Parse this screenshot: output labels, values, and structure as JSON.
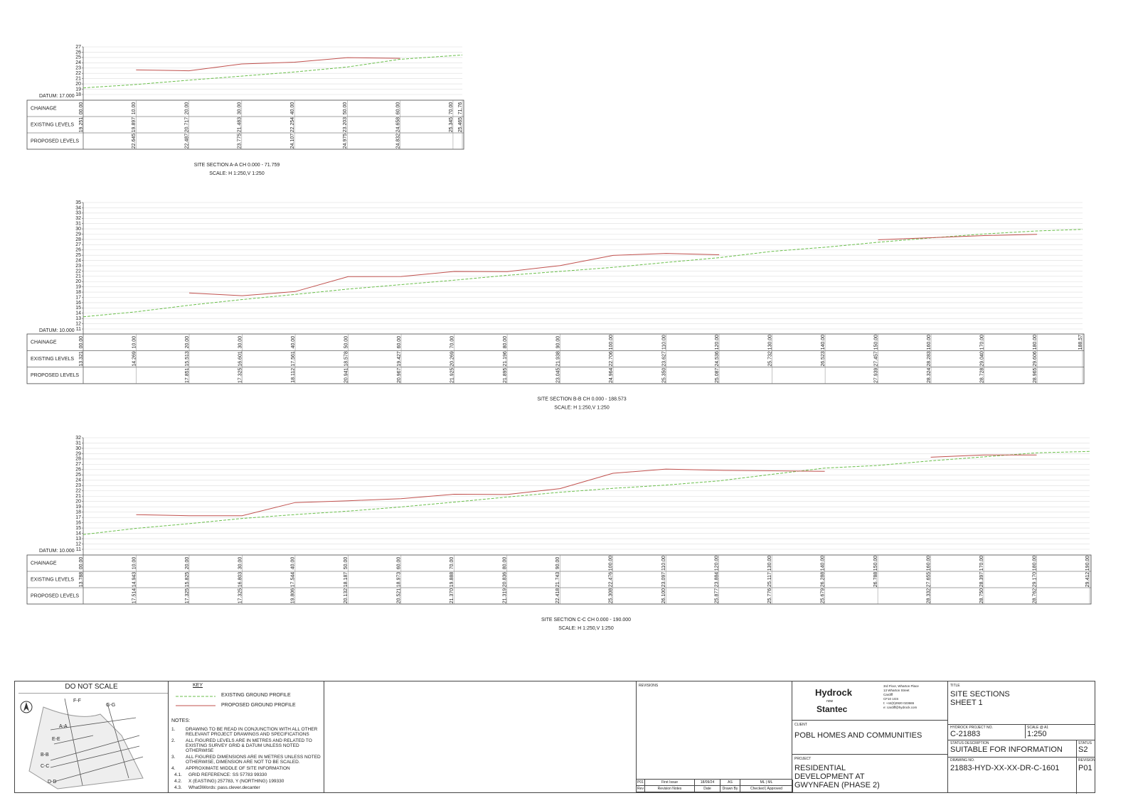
{
  "chart_data": [
    {
      "type": "line",
      "title": "SITE SECTION A-A CH 0.000 - 71.759",
      "subtitle": "SCALE: H 1:250,V 1:250",
      "datum": "DATUM: 17.000",
      "x_label": "CHAINAGE",
      "grid": true,
      "x": [
        0,
        10,
        20,
        30,
        40,
        50,
        60,
        70,
        71.759
      ],
      "xlim": [
        0,
        71.759
      ],
      "xticks": [
        {
          "value": 0,
          "label": "00.00"
        },
        {
          "value": 10,
          "label": "10.00"
        },
        {
          "value": 20,
          "label": "20.00"
        },
        {
          "value": 30,
          "label": "30.00"
        },
        {
          "value": 40,
          "label": "40.00"
        },
        {
          "value": 50,
          "label": "50.00"
        },
        {
          "value": 60,
          "label": "60.00"
        },
        {
          "value": 70,
          "label": "70.00"
        },
        {
          "value": 71.759,
          "label": "71.76"
        }
      ],
      "ylim": [
        18,
        27
      ],
      "yticks": [
        18,
        19,
        20,
        21,
        22,
        23,
        24,
        25,
        26,
        27
      ],
      "series": [
        {
          "name": "EXISTING LEVELS",
          "color": "#6abf4b",
          "values": [
            19.251,
            19.897,
            20.717,
            21.483,
            22.254,
            23.203,
            24.658,
            25.345,
            25.465
          ],
          "value_labels": [
            "19.251",
            "19.897",
            "20.717",
            "21.483",
            "22.254",
            "23.203",
            "24.658",
            "25.345",
            "25.465"
          ]
        },
        {
          "name": "PROPOSED LEVELS",
          "color": "#c0504d",
          "values": [
            null,
            22.645,
            22.487,
            23.775,
            24.107,
            24.975,
            24.832,
            null,
            null
          ],
          "value_labels": [
            null,
            "22.645",
            "22.487",
            "23.775",
            "24.107",
            "24.975",
            "24.832",
            null,
            null
          ]
        }
      ]
    },
    {
      "type": "line",
      "title": "SITE SECTION B-B CH 0.000 - 188.573",
      "subtitle": "SCALE: H 1:250,V 1:250",
      "datum": "DATUM: 10.000",
      "x_label": "CHAINAGE",
      "grid": true,
      "x": [
        0,
        10,
        20,
        30,
        40,
        50,
        60,
        70,
        80,
        90,
        100,
        110,
        120,
        130,
        140,
        150,
        160,
        170,
        180,
        188.573
      ],
      "xlim": [
        0,
        188.573
      ],
      "xticks": [
        {
          "value": 0,
          "label": "00.00"
        },
        {
          "value": 10,
          "label": "10.00"
        },
        {
          "value": 20,
          "label": "20.00"
        },
        {
          "value": 30,
          "label": "30.00"
        },
        {
          "value": 40,
          "label": "40.00"
        },
        {
          "value": 50,
          "label": "50.00"
        },
        {
          "value": 60,
          "label": "60.00"
        },
        {
          "value": 70,
          "label": "70.00"
        },
        {
          "value": 80,
          "label": "80.00"
        },
        {
          "value": 90,
          "label": "90.00"
        },
        {
          "value": 100,
          "label": "100.00"
        },
        {
          "value": 110,
          "label": "110.00"
        },
        {
          "value": 120,
          "label": "120.00"
        },
        {
          "value": 130,
          "label": "130.00"
        },
        {
          "value": 140,
          "label": "140.00"
        },
        {
          "value": 150,
          "label": "150.00"
        },
        {
          "value": 160,
          "label": "160.00"
        },
        {
          "value": 170,
          "label": "170.00"
        },
        {
          "value": 180,
          "label": "180.00"
        },
        {
          "value": 188.573,
          "label": "188.57"
        }
      ],
      "ylim": [
        11,
        35
      ],
      "yticks": [
        11,
        12,
        13,
        14,
        15,
        16,
        17,
        18,
        19,
        20,
        21,
        22,
        23,
        24,
        25,
        26,
        27,
        28,
        29,
        30,
        31,
        32,
        33,
        34,
        35
      ],
      "series": [
        {
          "name": "EXISTING LEVELS",
          "color": "#6abf4b",
          "values": [
            13.321,
            14.269,
            15.513,
            16.601,
            17.561,
            18.578,
            19.427,
            20.269,
            21.196,
            21.938,
            22.706,
            23.627,
            24.536,
            25.732,
            26.523,
            27.457,
            28.283,
            29.04,
            29.606,
            29.9
          ],
          "value_labels": [
            "13.321",
            "14.269",
            "15.513",
            "16.601",
            "17.561",
            "18.578",
            "19.427",
            "20.269",
            "21.196",
            "21.938",
            "22.706",
            "23.627",
            "24.536",
            "25.732",
            "26.523",
            "27.457",
            "28.283",
            "29.040",
            "29.606",
            null
          ]
        },
        {
          "name": "PROPOSED LEVELS",
          "color": "#c0504d",
          "values": [
            null,
            null,
            17.851,
            17.325,
            18.112,
            20.941,
            20.967,
            21.925,
            21.895,
            23.045,
            24.964,
            25.35,
            25.087,
            null,
            null,
            27.939,
            28.324,
            28.728,
            28.965,
            null
          ],
          "value_labels": [
            null,
            null,
            "17.851",
            "17.325",
            "18.112",
            "20.941",
            "20.967",
            "21.925",
            "21.895",
            "23.045",
            "24.964",
            "25.350",
            "25.087",
            null,
            null,
            "27.939",
            "28.324",
            "28.728",
            "28.965",
            null
          ]
        }
      ]
    },
    {
      "type": "line",
      "title": "SITE SECTION C-C CH 0.000 - 190.000",
      "subtitle": "SCALE: H 1:250,V 1:250",
      "datum": "DATUM: 10.000",
      "x_label": "CHAINAGE",
      "grid": true,
      "x": [
        0,
        10,
        20,
        30,
        40,
        50,
        60,
        70,
        80,
        90,
        100,
        110,
        120,
        130,
        140,
        150,
        160,
        170,
        180,
        190
      ],
      "xlim": [
        0,
        190
      ],
      "xticks": [
        {
          "value": 0,
          "label": "00.00"
        },
        {
          "value": 10,
          "label": "10.00"
        },
        {
          "value": 20,
          "label": "20.00"
        },
        {
          "value": 30,
          "label": "30.00"
        },
        {
          "value": 40,
          "label": "40.00"
        },
        {
          "value": 50,
          "label": "50.00"
        },
        {
          "value": 60,
          "label": "60.00"
        },
        {
          "value": 70,
          "label": "70.00"
        },
        {
          "value": 80,
          "label": "80.00"
        },
        {
          "value": 90,
          "label": "90.00"
        },
        {
          "value": 100,
          "label": "100.00"
        },
        {
          "value": 110,
          "label": "110.00"
        },
        {
          "value": 120,
          "label": "120.00"
        },
        {
          "value": 130,
          "label": "130.00"
        },
        {
          "value": 140,
          "label": "140.00"
        },
        {
          "value": 150,
          "label": "150.00"
        },
        {
          "value": 160,
          "label": "160.00"
        },
        {
          "value": 170,
          "label": "170.00"
        },
        {
          "value": 180,
          "label": "180.00"
        },
        {
          "value": 190,
          "label": "190.00"
        }
      ],
      "ylim": [
        11,
        32
      ],
      "yticks": [
        11,
        12,
        13,
        14,
        15,
        16,
        17,
        18,
        19,
        20,
        21,
        22,
        23,
        24,
        25,
        26,
        27,
        28,
        29,
        30,
        31,
        32
      ],
      "series": [
        {
          "name": "EXISTING LEVELS",
          "color": "#6abf4b",
          "values": [
            13.788,
            14.943,
            15.825,
            16.803,
            17.544,
            18.187,
            18.973,
            19.888,
            20.836,
            21.743,
            22.476,
            23.097,
            23.884,
            25.117,
            26.288,
            26.788,
            27.655,
            28.397,
            29.17,
            29.412
          ],
          "value_labels": [
            "13.788",
            "14.943",
            "15.825",
            "16.803",
            "17.544",
            "18.187",
            "18.973",
            "19.888",
            "20.836",
            "21.743",
            "22.476",
            "23.097",
            "23.884",
            "25.117",
            "26.288",
            "26.788",
            "27.655",
            "28.397",
            "29.170",
            "29.412"
          ]
        },
        {
          "name": "PROPOSED LEVELS",
          "color": "#c0504d",
          "values": [
            null,
            17.514,
            17.325,
            17.325,
            19.806,
            20.132,
            20.521,
            21.37,
            21.319,
            22.418,
            25.308,
            26.1,
            25.877,
            25.776,
            25.679,
            null,
            28.332,
            28.75,
            28.762,
            null
          ],
          "value_labels": [
            null,
            "17.514",
            "17.325",
            "17.325",
            "19.806",
            "20.132",
            "20.521",
            "21.370",
            "21.319",
            "22.418",
            "25.308",
            "26.100",
            "25.877",
            "25.776",
            "25.679",
            null,
            "28.332",
            "28.750",
            "28.762",
            null
          ]
        }
      ]
    }
  ],
  "title_block": {
    "do_not_scale": "DO NOT SCALE",
    "key_plan_labels": [
      "F-F",
      "G-G",
      "A-A",
      "E-E",
      "B-B",
      "C-C",
      "D-D"
    ],
    "key": {
      "title": "KEY",
      "items": [
        "EXISTING GROUND PROFILE",
        "PROPOSED GROUND PROFILE"
      ]
    },
    "notes": {
      "title": "NOTES:",
      "items": [
        [
          "1.",
          "DRAWING TO BE READ IN CONJUNCTION WITH ALL OTHER RELEVANT PROJECT DRAWINGS AND SPECIFICATIONS"
        ],
        [
          "2.",
          "ALL FIGURED LEVELS ARE IN METRES AND RELATED TO EXISTING SURVEY GRID & DATUM UNLESS NOTED OTHERWISE"
        ],
        [
          "3.",
          "ALL FIGURED DIMENSIONS ARE IN METRES UNLESS NOTED OTHERWISE, DIMENSION ARE NOT TO BE SCALED."
        ],
        [
          "4.",
          "APPROXIMATE MIDDLE OF SITE INFORMATION"
        ],
        [
          "4.1.",
          "GRID REFERENCE: SS 57783 99330"
        ],
        [
          "4.2.",
          "X (EASTING) 257783, Y (NORTHING) 199330"
        ],
        [
          "4.3.",
          "What3Words: pass.clever.decanter"
        ]
      ]
    },
    "revisions": {
      "title": "REVISIONS",
      "row": [
        "P01",
        "First Issue",
        "18/09/24",
        "AS",
        "ML | ML"
      ],
      "header": [
        "Rev",
        "Revision Notes",
        "Date",
        "Drawn By",
        "Checked | Approved"
      ]
    },
    "logo": {
      "name": "Hydrock",
      "now": "now",
      "stantec": "Stantec"
    },
    "address": [
      "3rd Floor, Wharton Place",
      "13 Wharton Street",
      "Cardiff",
      "CF10 1GS",
      "t: +44(0)2920 023665",
      "e: cardiff@hydrock.com"
    ],
    "client_label": "CLIENT",
    "client": "POBL HOMES AND COMMUNITIES",
    "project_label": "PROJECT",
    "project": "RESIDENTIAL DEVELOPMENT AT GWYNFAEN (PHASE 2)",
    "title_label": "TITLE",
    "title": "SITE SECTIONS SHEET 1",
    "project_no_label": "HYDROCK PROJECT NO.",
    "project_no": "C-21883",
    "scale_label": "SCALE @ A1",
    "scale": "1:250",
    "status_desc_label": "STATUS DESCRIPTION",
    "status_desc": "SUITABLE FOR INFORMATION",
    "status_label": "STATUS",
    "status": "S2",
    "drawing_no_label": "DRAWING NO.",
    "drawing_no": "21883-HYD-XX-XX-DR-C-1601",
    "revision_label": "REVISION",
    "revision": "P01"
  }
}
